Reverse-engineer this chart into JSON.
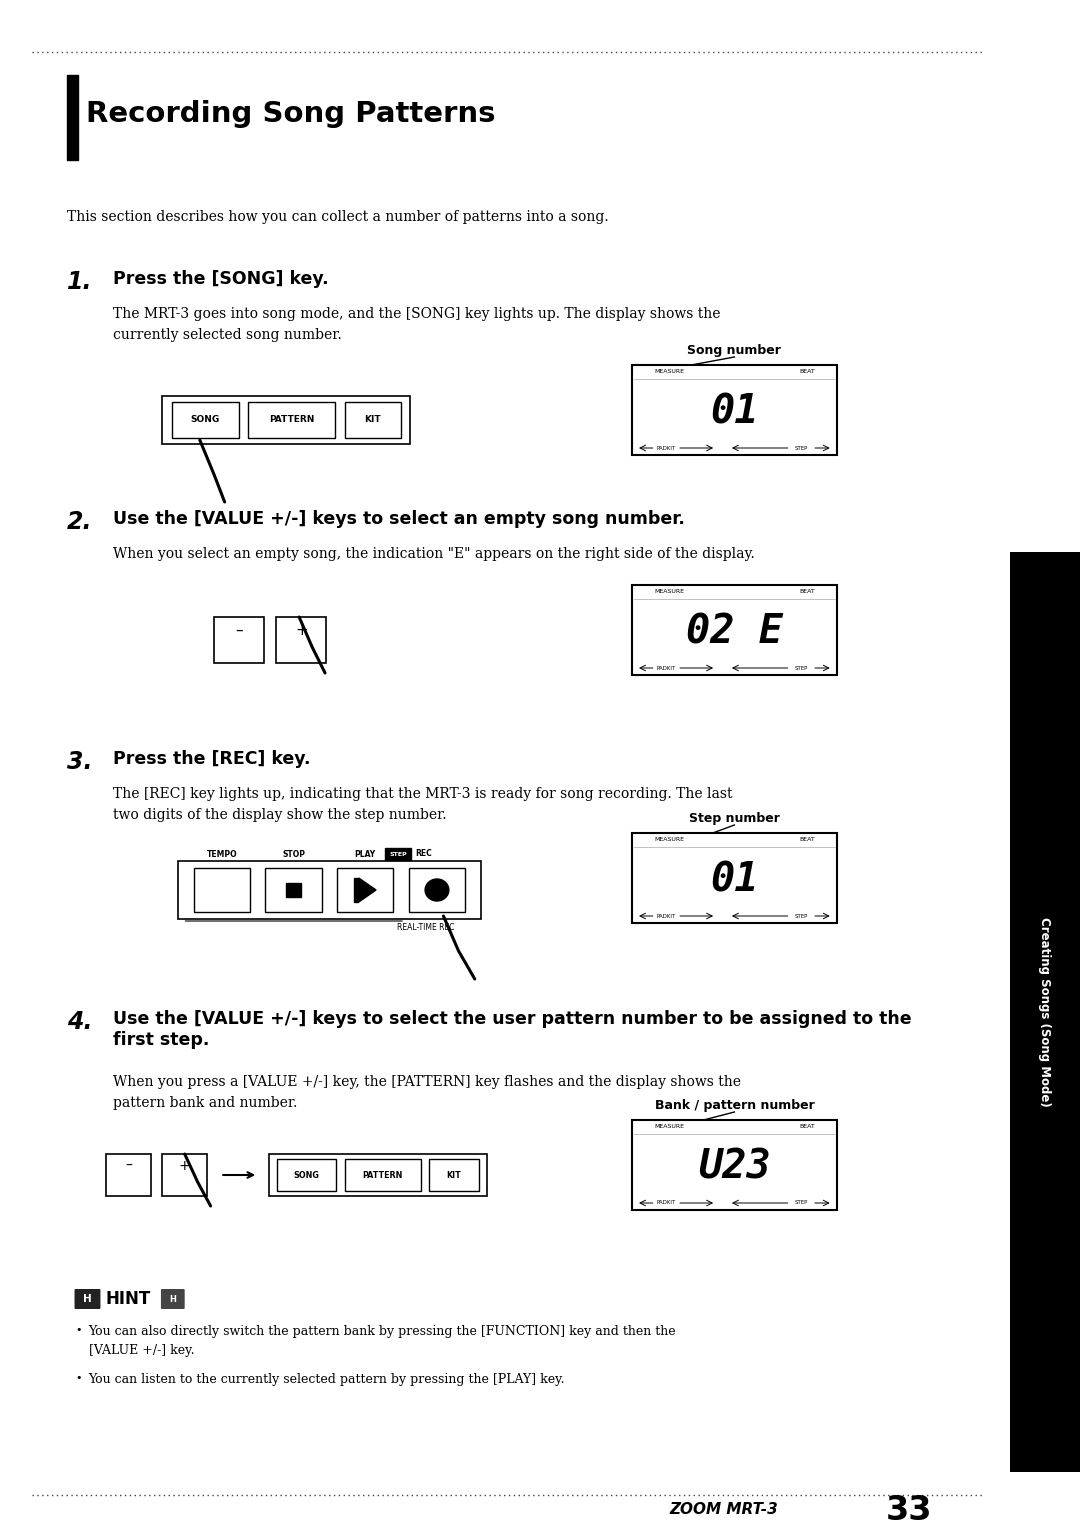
{
  "page_bg": "#ffffff",
  "title": "Recording Song Patterns",
  "sidebar_text": "Creating Songs (Song Mode)",
  "page_num": "33",
  "footer_left": "ZOOM MRT-3",
  "intro": "This section describes how you can collect a number of patterns into a song.",
  "s1_head": "Press the [SONG] key.",
  "s1_body": "The MRT-3 goes into song mode, and the [SONG] key lights up. The display shows the\ncurrently selected song number.",
  "s2_head": "Use the [VALUE +/-] keys to select an empty song number.",
  "s2_body": "When you select an empty song, the indication \"E\" appears on the right side of the display.",
  "s3_head": "Press the [REC] key.",
  "s3_body": "The [REC] key lights up, indicating that the MRT-3 is ready for song recording. The last\ntwo digits of the display show the step number.",
  "s4_head": "Use the [VALUE +/-] keys to select the user pattern number to be assigned to the\nfirst step.",
  "s4_body": "When you press a [VALUE +/-] key, the [PATTERN] key flashes and the display shows the\npattern bank and number.",
  "hint1": "You can also directly switch the pattern bank by pressing the [FUNCTION] key and then the\n[VALUE +/-] key.",
  "hint2": "You can listen to the currently selected pattern by pressing the [PLAY] key.",
  "disp1_text": "01",
  "disp2_text": "02 E",
  "disp3_text": "01",
  "disp4_text": "U23",
  "song_number_label": "Song number",
  "step_number_label": "Step number",
  "bank_pattern_label": "Bank / pattern number"
}
